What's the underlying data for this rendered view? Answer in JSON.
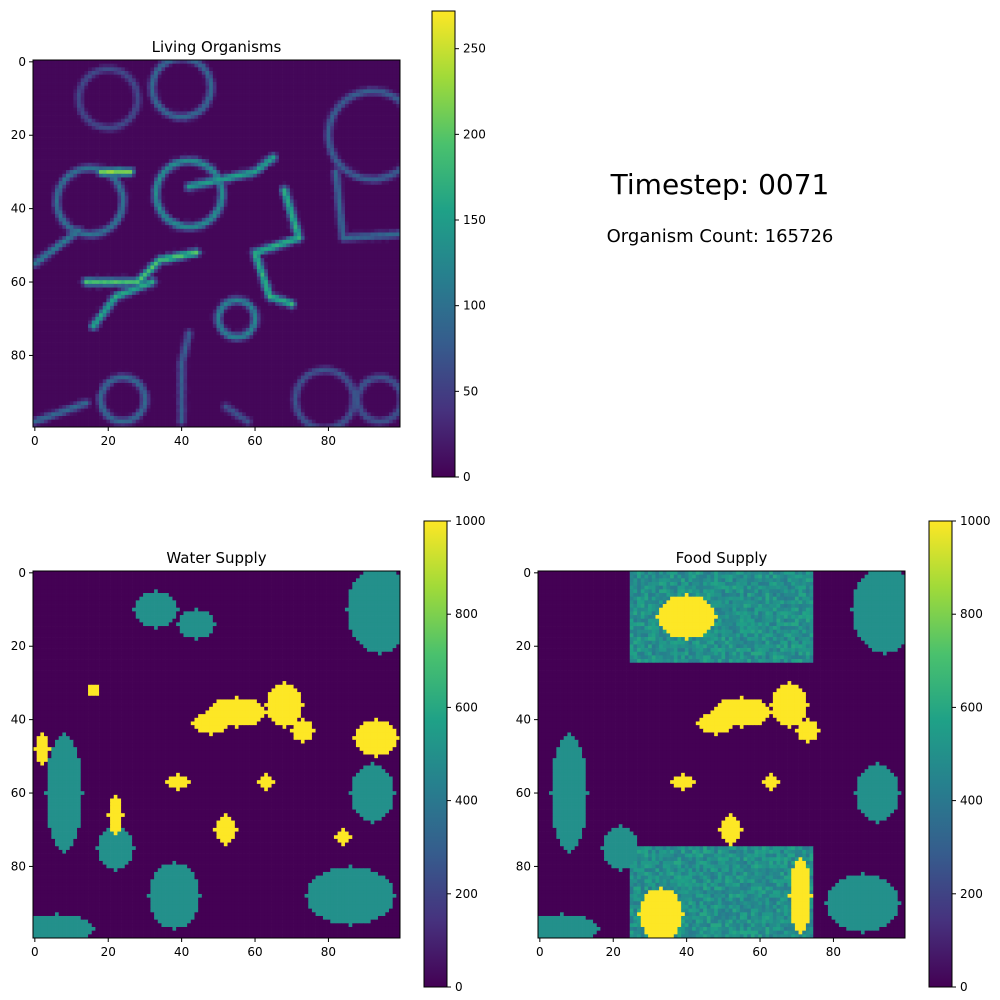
{
  "figure": {
    "timestep_label": "Timestep: 0071",
    "organism_count_label": "Organism Count: 165726"
  },
  "colormap": {
    "name": "viridis",
    "stops": [
      "#440154",
      "#46327e",
      "#365c8d",
      "#277f8e",
      "#1fa187",
      "#4ac16d",
      "#a0da39",
      "#fde725"
    ]
  },
  "chart_data": [
    {
      "type": "heatmap",
      "title": "Living Organisms",
      "grid_size": [
        100,
        100
      ],
      "xlim": [
        0,
        99
      ],
      "ylim": [
        0,
        99
      ],
      "y_inverted": true,
      "xticks": [
        0,
        20,
        40,
        60,
        80
      ],
      "yticks": [
        0,
        20,
        40,
        60,
        80
      ],
      "colorbar": {
        "min": 0,
        "max": 272,
        "ticks": [
          0,
          50,
          100,
          150,
          200,
          250
        ]
      },
      "background_value": 5,
      "structures": [
        {
          "kind": "ring",
          "cx": 40,
          "cy": 7,
          "r": 8,
          "value": 90
        },
        {
          "kind": "ring",
          "cx": 42,
          "cy": 36,
          "r": 9,
          "value": 130
        },
        {
          "kind": "ring",
          "cx": 92,
          "cy": 20,
          "r": 12,
          "value": 80
        },
        {
          "kind": "ring",
          "cx": 15,
          "cy": 38,
          "r": 9,
          "value": 100
        },
        {
          "kind": "ring",
          "cx": 24,
          "cy": 92,
          "r": 6,
          "value": 90
        },
        {
          "kind": "ring",
          "cx": 79,
          "cy": 92,
          "r": 8,
          "value": 70
        },
        {
          "kind": "ring",
          "cx": 94,
          "cy": 92,
          "r": 6,
          "value": 70
        },
        {
          "kind": "ring",
          "cx": 55,
          "cy": 70,
          "r": 5,
          "value": 120
        },
        {
          "kind": "ring",
          "cx": 20,
          "cy": 10,
          "r": 8,
          "value": 60
        },
        {
          "kind": "line",
          "points": [
            [
              42,
              34
            ],
            [
              60,
              30
            ],
            [
              65,
              26
            ]
          ],
          "value": 150
        },
        {
          "kind": "line",
          "points": [
            [
              68,
              35
            ],
            [
              72,
              48
            ],
            [
              60,
              52
            ],
            [
              64,
              64
            ],
            [
              70,
              66
            ]
          ],
          "value": 170
        },
        {
          "kind": "line",
          "points": [
            [
              14,
              60
            ],
            [
              28,
              60
            ],
            [
              34,
              54
            ],
            [
              44,
              52
            ]
          ],
          "value": 190
        },
        {
          "kind": "line",
          "points": [
            [
              16,
              72
            ],
            [
              22,
              64
            ],
            [
              32,
              60
            ]
          ],
          "value": 160
        },
        {
          "kind": "line",
          "points": [
            [
              18,
              30
            ],
            [
              26,
              30
            ]
          ],
          "value": 220
        },
        {
          "kind": "line",
          "points": [
            [
              0,
              55
            ],
            [
              12,
              46
            ]
          ],
          "value": 110
        },
        {
          "kind": "line",
          "points": [
            [
              0,
              98
            ],
            [
              14,
              93
            ]
          ],
          "value": 90
        },
        {
          "kind": "line",
          "points": [
            [
              82,
              30
            ],
            [
              84,
              48
            ],
            [
              99,
              47
            ]
          ],
          "value": 90
        },
        {
          "kind": "line",
          "points": [
            [
              42,
              74
            ],
            [
              40,
              82
            ],
            [
              40,
              98
            ]
          ],
          "value": 80
        },
        {
          "kind": "line",
          "points": [
            [
              58,
              98
            ],
            [
              52,
              94
            ]
          ],
          "value": 70
        }
      ]
    },
    {
      "type": "heatmap",
      "title": "Water Supply",
      "grid_size": [
        100,
        100
      ],
      "xlim": [
        0,
        99
      ],
      "ylim": [
        0,
        99
      ],
      "y_inverted": true,
      "xticks": [
        0,
        20,
        40,
        60,
        80
      ],
      "yticks": [
        0,
        20,
        40,
        60,
        80
      ],
      "colorbar": {
        "min": 0,
        "max": 1000,
        "ticks": [
          0,
          200,
          400,
          600,
          800,
          1000
        ]
      },
      "background_value": 0,
      "patches": [
        {
          "cx": 94,
          "cy": 10,
          "rx": 9,
          "ry": 12,
          "value": 500
        },
        {
          "cx": 33,
          "cy": 10,
          "rx": 6,
          "ry": 5,
          "value": 500
        },
        {
          "cx": 44,
          "cy": 14,
          "rx": 5,
          "ry": 4,
          "value": 500
        },
        {
          "cx": 8,
          "cy": 60,
          "rx": 5,
          "ry": 16,
          "value": 500
        },
        {
          "cx": 22,
          "cy": 75,
          "rx": 5,
          "ry": 6,
          "value": 500
        },
        {
          "cx": 38,
          "cy": 88,
          "rx": 7,
          "ry": 9,
          "value": 500
        },
        {
          "cx": 86,
          "cy": 88,
          "rx": 12,
          "ry": 8,
          "value": 500
        },
        {
          "cx": 6,
          "cy": 97,
          "rx": 10,
          "ry": 4,
          "value": 500
        },
        {
          "cx": 92,
          "cy": 60,
          "rx": 6,
          "ry": 8,
          "value": 500
        },
        {
          "cx": 55,
          "cy": 38,
          "rx": 8,
          "ry": 4,
          "value": 1000
        },
        {
          "cx": 68,
          "cy": 36,
          "rx": 5,
          "ry": 6,
          "value": 1000
        },
        {
          "cx": 73,
          "cy": 43,
          "rx": 3,
          "ry": 3,
          "value": 1000
        },
        {
          "cx": 48,
          "cy": 41,
          "rx": 5,
          "ry": 3,
          "value": 1000
        },
        {
          "cx": 93,
          "cy": 45,
          "rx": 6,
          "ry": 5,
          "value": 1000
        },
        {
          "cx": 2,
          "cy": 48,
          "rx": 2,
          "ry": 4,
          "value": 1000
        },
        {
          "cx": 52,
          "cy": 70,
          "rx": 3,
          "ry": 4,
          "value": 1000
        },
        {
          "cx": 22,
          "cy": 66,
          "rx": 2,
          "ry": 5,
          "value": 1000
        },
        {
          "cx": 39,
          "cy": 57,
          "rx": 3,
          "ry": 2,
          "value": 1000
        },
        {
          "cx": 63,
          "cy": 57,
          "rx": 2,
          "ry": 2,
          "value": 1000
        },
        {
          "cx": 84,
          "cy": 72,
          "rx": 2,
          "ry": 2,
          "value": 1000
        },
        {
          "cx": 16,
          "cy": 32,
          "rx": 1.5,
          "ry": 1.5,
          "value": 1000
        }
      ]
    },
    {
      "type": "heatmap",
      "title": "Food Supply",
      "grid_size": [
        100,
        100
      ],
      "xlim": [
        0,
        99
      ],
      "ylim": [
        0,
        99
      ],
      "y_inverted": true,
      "xticks": [
        0,
        20,
        40,
        60,
        80
      ],
      "yticks": [
        0,
        20,
        40,
        60,
        80
      ],
      "colorbar": {
        "min": 0,
        "max": 1000,
        "ticks": [
          0,
          200,
          400,
          600,
          800,
          1000
        ]
      },
      "background_value": 0,
      "noise_regions": [
        {
          "x0": 25,
          "y0": 0,
          "x1": 75,
          "y1": 25,
          "value": 500
        },
        {
          "x0": 25,
          "y0": 75,
          "x1": 75,
          "y1": 100,
          "value": 500
        }
      ],
      "patches": [
        {
          "cx": 94,
          "cy": 10,
          "rx": 9,
          "ry": 12,
          "value": 500
        },
        {
          "cx": 8,
          "cy": 60,
          "rx": 5,
          "ry": 16,
          "value": 500
        },
        {
          "cx": 22,
          "cy": 75,
          "rx": 5,
          "ry": 6,
          "value": 500
        },
        {
          "cx": 88,
          "cy": 90,
          "rx": 10,
          "ry": 8,
          "value": 500
        },
        {
          "cx": 6,
          "cy": 97,
          "rx": 10,
          "ry": 4,
          "value": 500
        },
        {
          "cx": 92,
          "cy": 60,
          "rx": 6,
          "ry": 8,
          "value": 500
        },
        {
          "cx": 40,
          "cy": 12,
          "rx": 8,
          "ry": 6,
          "value": 1000
        },
        {
          "cx": 33,
          "cy": 93,
          "rx": 6,
          "ry": 7,
          "value": 1000
        },
        {
          "cx": 71,
          "cy": 88,
          "rx": 3,
          "ry": 10,
          "value": 1000
        },
        {
          "cx": 55,
          "cy": 38,
          "rx": 8,
          "ry": 4,
          "value": 1000
        },
        {
          "cx": 68,
          "cy": 36,
          "rx": 5,
          "ry": 6,
          "value": 1000
        },
        {
          "cx": 73,
          "cy": 43,
          "rx": 3,
          "ry": 3,
          "value": 1000
        },
        {
          "cx": 48,
          "cy": 41,
          "rx": 5,
          "ry": 3,
          "value": 1000
        },
        {
          "cx": 52,
          "cy": 70,
          "rx": 3,
          "ry": 4,
          "value": 1000
        },
        {
          "cx": 39,
          "cy": 57,
          "rx": 3,
          "ry": 2,
          "value": 1000
        },
        {
          "cx": 63,
          "cy": 57,
          "rx": 2,
          "ry": 2,
          "value": 1000
        }
      ]
    }
  ]
}
